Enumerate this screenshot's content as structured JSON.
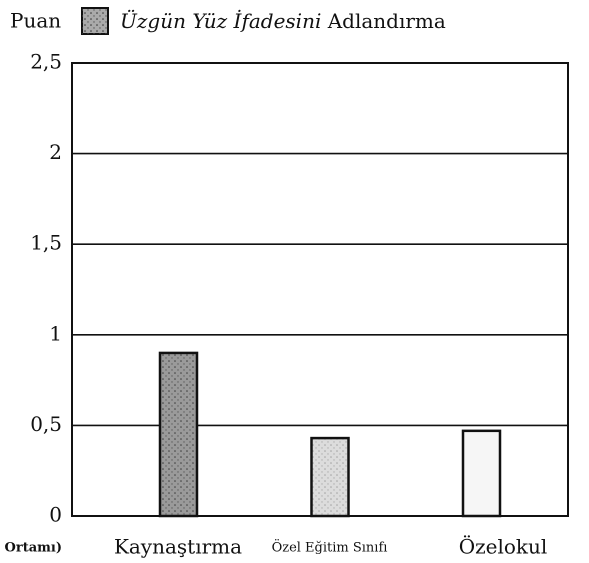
{
  "chart_data": {
    "type": "bar",
    "ylabel": "Puan",
    "legend_label": [
      "Üzgün Yüz İfadesini",
      "Adlandırma"
    ],
    "xlabel": "n Ortamı)",
    "categories": [
      "Kaynaştırma",
      "Özel Eğitim Sınıfı",
      "Özelokul"
    ],
    "values": [
      0.9,
      0.43,
      0.47
    ],
    "colors": [
      "#9a9a9a",
      "#dcdcdc",
      "#f6f6f6"
    ],
    "ylim": [
      0,
      2.5
    ],
    "yticks": [
      0,
      {
        "value": 0.5,
        "label": "0,5"
      },
      1,
      {
        "value": 1.5,
        "label": "1,5"
      },
      2,
      {
        "value": 2.5,
        "label": "2,5"
      }
    ],
    "grid": true
  }
}
